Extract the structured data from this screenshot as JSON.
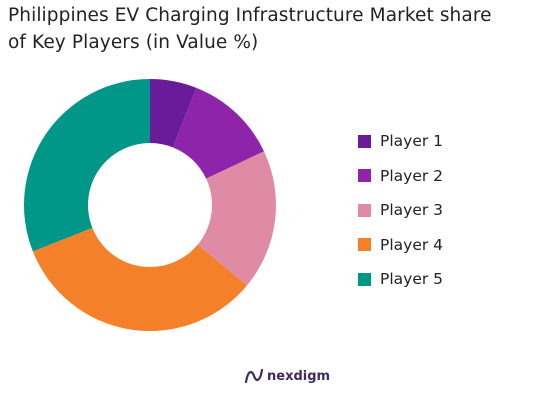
{
  "header": {
    "title_line1": "Philippines EV Charging Infrastructure Market share",
    "title_line2": "of Key Players (in Value %)"
  },
  "chart_data": {
    "type": "pie",
    "subtype": "donut",
    "title": "Philippines EV Charging Infrastructure Market share of Key Players (in Value %)",
    "categories": [
      "Player 1",
      "Player 2",
      "Player 3",
      "Player 4",
      "Player 5"
    ],
    "values": [
      6,
      12,
      18,
      33,
      31
    ],
    "colors": [
      "#6a1b9a",
      "#8e24aa",
      "#e08ba6",
      "#f5802a",
      "#009688"
    ],
    "legend_position": "right"
  },
  "legend": {
    "items": [
      {
        "label": "Player 1",
        "color": "#6a1b9a"
      },
      {
        "label": "Player 2",
        "color": "#8e24aa"
      },
      {
        "label": "Player 3",
        "color": "#e08ba6"
      },
      {
        "label": "Player 4",
        "color": "#f5802a"
      },
      {
        "label": "Player 5",
        "color": "#009688"
      }
    ]
  },
  "footer": {
    "logo_text": "nexdigm",
    "logo_icon": "nexdigm-logo-icon"
  }
}
